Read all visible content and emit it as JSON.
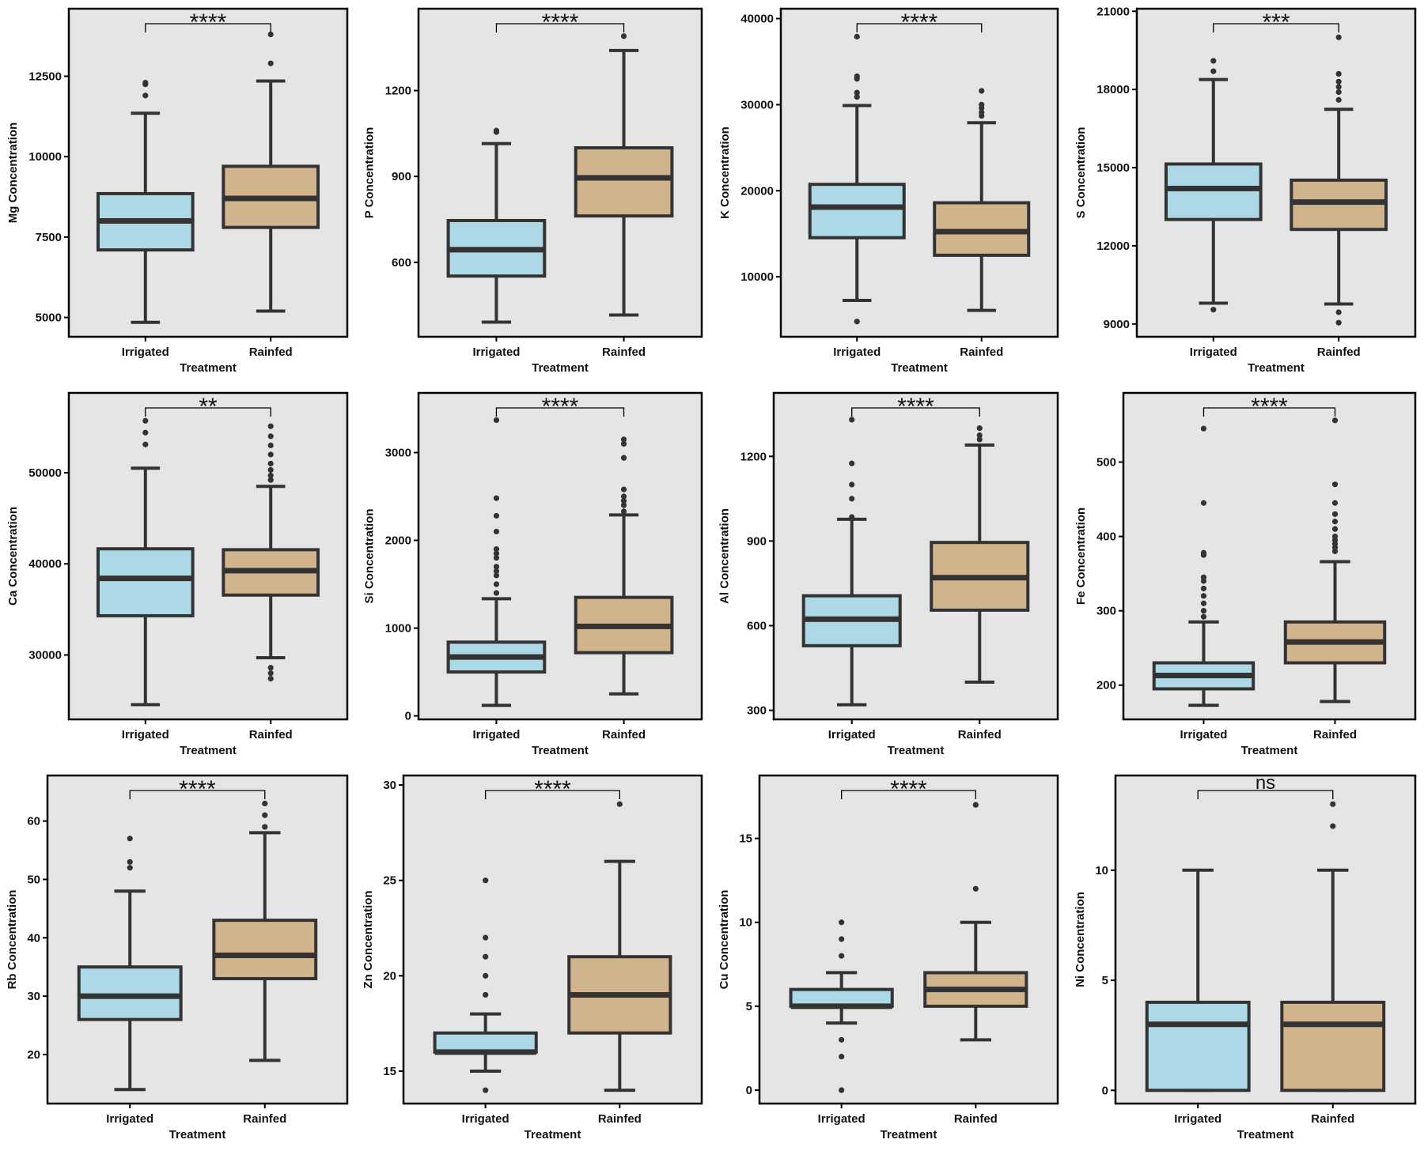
{
  "colors": {
    "irrigated": "#add8e6",
    "rainfed": "#d2b48c",
    "panel_bg": "#e5e5e5",
    "line": "#333333"
  },
  "chart_data": [
    {
      "type": "box",
      "ylabel": "Mg Concentration",
      "xlabel": "Treatment",
      "categories": [
        "Irrigated",
        "Rainfed"
      ],
      "ylim": [
        4400,
        14600
      ],
      "yticks": [
        "5000",
        "7500",
        "10000",
        "12500"
      ],
      "significance": "****",
      "series": [
        {
          "name": "Irrigated",
          "whisker_low": 4850,
          "q1": 7100,
          "median": 8000,
          "q3": 8850,
          "whisker_high": 11350,
          "outliers": [
            11900,
            12250,
            12300
          ]
        },
        {
          "name": "Rainfed",
          "whisker_low": 5200,
          "q1": 7800,
          "median": 8700,
          "q3": 9700,
          "whisker_high": 12350,
          "outliers": [
            12900,
            13800
          ]
        }
      ]
    },
    {
      "type": "box",
      "ylabel": "P Concentration",
      "xlabel": "Treatment",
      "categories": [
        "Irrigated",
        "Rainfed"
      ],
      "ylim": [
        340,
        1486
      ],
      "yticks": [
        "600",
        "900",
        "1200"
      ],
      "significance": "****",
      "series": [
        {
          "name": "Irrigated",
          "whisker_low": 391,
          "q1": 552,
          "median": 644,
          "q3": 746,
          "whisker_high": 1015,
          "outliers": [
            1055,
            1060
          ]
        },
        {
          "name": "Rainfed",
          "whisker_low": 416,
          "q1": 762,
          "median": 895,
          "q3": 1000,
          "whisker_high": 1340,
          "outliers": [
            1390
          ]
        }
      ]
    },
    {
      "type": "box",
      "ylabel": "K Concentration",
      "xlabel": "Treatment",
      "categories": [
        "Irrigated",
        "Rainfed"
      ],
      "ylim": [
        3030,
        41150
      ],
      "yticks": [
        "10000",
        "20000",
        "30000",
        "40000"
      ],
      "significance": "****",
      "series": [
        {
          "name": "Irrigated",
          "whisker_low": 7250,
          "q1": 14540,
          "median": 18100,
          "q3": 20740,
          "whisker_high": 29900,
          "outliers": [
            4800,
            30900,
            31400,
            33000,
            33300,
            37900
          ]
        },
        {
          "name": "Rainfed",
          "whisker_low": 6100,
          "q1": 12500,
          "median": 15250,
          "q3": 18600,
          "whisker_high": 27900,
          "outliers": [
            28700,
            29100,
            29600,
            30000,
            31600
          ]
        }
      ]
    },
    {
      "type": "box",
      "ylabel": "S Concentration",
      "xlabel": "Treatment",
      "categories": [
        "Irrigated",
        "Rainfed"
      ],
      "ylim": [
        8510,
        21100
      ],
      "yticks": [
        "9000",
        "12000",
        "15000",
        "18000",
        "21000"
      ],
      "significance": "***",
      "series": [
        {
          "name": "Irrigated",
          "whisker_low": 9800,
          "q1": 13010,
          "median": 14200,
          "q3": 15140,
          "whisker_high": 18380,
          "outliers": [
            9550,
            18700,
            19100
          ]
        },
        {
          "name": "Rainfed",
          "whisker_low": 9770,
          "q1": 12630,
          "median": 13680,
          "q3": 14520,
          "whisker_high": 17240,
          "outliers": [
            9450,
            9050,
            17600,
            17900,
            18100,
            18300,
            18600,
            20000
          ]
        }
      ]
    },
    {
      "type": "box",
      "ylabel": "Ca Concentration",
      "xlabel": "Treatment",
      "categories": [
        "Irrigated",
        "Rainfed"
      ],
      "ylim": [
        22930,
        58760
      ],
      "yticks": [
        "30000",
        "40000",
        "50000"
      ],
      "significance": "**",
      "series": [
        {
          "name": "Irrigated",
          "whisker_low": 24550,
          "q1": 34300,
          "median": 38400,
          "q3": 41650,
          "whisker_high": 50500,
          "outliers": [
            53100,
            54400,
            55700
          ]
        },
        {
          "name": "Rainfed",
          "whisker_low": 29700,
          "q1": 36570,
          "median": 39250,
          "q3": 41550,
          "whisker_high": 48500,
          "outliers": [
            27400,
            28000,
            28600,
            49200,
            49700,
            50300,
            51000,
            52000,
            53000,
            54000,
            55100
          ]
        }
      ]
    },
    {
      "type": "box",
      "ylabel": "Si Concentration",
      "xlabel": "Treatment",
      "categories": [
        "Irrigated",
        "Rainfed"
      ],
      "ylim": [
        -40,
        3680
      ],
      "yticks": [
        "0",
        "1000",
        "2000",
        "3000"
      ],
      "significance": "****",
      "series": [
        {
          "name": "Irrigated",
          "whisker_low": 120,
          "q1": 500,
          "median": 670,
          "q3": 840,
          "whisker_high": 1335,
          "outliers": [
            1400,
            1500,
            1600,
            1650,
            1700,
            1800,
            1850,
            1900,
            2100,
            2280,
            2480,
            3370
          ]
        },
        {
          "name": "Rainfed",
          "whisker_low": 250,
          "q1": 720,
          "median": 1020,
          "q3": 1350,
          "whisker_high": 2290,
          "outliers": [
            2330,
            2400,
            2450,
            2500,
            2580,
            2940,
            3100,
            3150
          ]
        }
      ]
    },
    {
      "type": "box",
      "ylabel": "Al Concentration",
      "xlabel": "Treatment",
      "categories": [
        "Irrigated",
        "Rainfed"
      ],
      "ylim": [
        268,
        1425
      ],
      "yticks": [
        "300",
        "600",
        "900",
        "1200"
      ],
      "significance": "****",
      "series": [
        {
          "name": "Irrigated",
          "whisker_low": 320,
          "q1": 529,
          "median": 623,
          "q3": 706,
          "whisker_high": 977,
          "outliers": [
            985,
            1050,
            1100,
            1175,
            1330
          ]
        },
        {
          "name": "Rainfed",
          "whisker_low": 400,
          "q1": 655,
          "median": 770,
          "q3": 895,
          "whisker_high": 1240,
          "outliers": [
            1260,
            1275,
            1300
          ]
        }
      ]
    },
    {
      "type": "box",
      "ylabel": "Fe Concentration",
      "xlabel": "Treatment",
      "categories": [
        "Irrigated",
        "Rainfed"
      ],
      "ylim": [
        154,
        593
      ],
      "yticks": [
        "200",
        "300",
        "400",
        "500"
      ],
      "significance": "****",
      "series": [
        {
          "name": "Irrigated",
          "whisker_low": 173,
          "q1": 195,
          "median": 213,
          "q3": 230,
          "whisker_high": 285,
          "outliers": [
            292,
            300,
            310,
            320,
            330,
            340,
            345,
            375,
            378,
            445,
            545
          ]
        },
        {
          "name": "Rainfed",
          "whisker_low": 178,
          "q1": 230,
          "median": 258,
          "q3": 285,
          "whisker_high": 366,
          "outliers": [
            380,
            385,
            390,
            395,
            400,
            410,
            420,
            430,
            445,
            470,
            556
          ]
        }
      ]
    },
    {
      "type": "box",
      "ylabel": "Rb Concentration",
      "xlabel": "Treatment",
      "categories": [
        "Irrigated",
        "Rainfed"
      ],
      "ylim": [
        11.6,
        67.8
      ],
      "yticks": [
        "20",
        "30",
        "40",
        "50",
        "60"
      ],
      "significance": "****",
      "series": [
        {
          "name": "Irrigated",
          "whisker_low": 14,
          "q1": 26,
          "median": 30,
          "q3": 35,
          "whisker_high": 48,
          "outliers": [
            52,
            53,
            57
          ]
        },
        {
          "name": "Rainfed",
          "whisker_low": 19,
          "q1": 33,
          "median": 37,
          "q3": 43,
          "whisker_high": 58,
          "outliers": [
            59,
            61,
            63
          ]
        }
      ]
    },
    {
      "type": "box",
      "ylabel": "Zn Concentration",
      "xlabel": "Treatment",
      "categories": [
        "Irrigated",
        "Rainfed"
      ],
      "ylim": [
        13.3,
        30.5
      ],
      "yticks": [
        "15",
        "20",
        "25",
        "30"
      ],
      "significance": "****",
      "series": [
        {
          "name": "Irrigated",
          "whisker_low": 15,
          "q1": 16,
          "median": 16,
          "q3": 17,
          "whisker_high": 18,
          "outliers": [
            14,
            19,
            20,
            21,
            22,
            25
          ]
        },
        {
          "name": "Rainfed",
          "whisker_low": 14,
          "q1": 17,
          "median": 19,
          "q3": 21,
          "whisker_high": 26,
          "outliers": [
            29
          ]
        }
      ]
    },
    {
      "type": "box",
      "ylabel": "Cu Concentration",
      "xlabel": "Treatment",
      "categories": [
        "Irrigated",
        "Rainfed"
      ],
      "ylim": [
        -0.8,
        18.75
      ],
      "yticks": [
        "0",
        "5",
        "10",
        "15"
      ],
      "significance": "****",
      "series": [
        {
          "name": "Irrigated",
          "whisker_low": 4,
          "q1": 5,
          "median": 5,
          "q3": 6,
          "whisker_high": 7,
          "outliers": [
            0,
            2,
            3,
            8,
            9,
            10
          ]
        },
        {
          "name": "Rainfed",
          "whisker_low": 3,
          "q1": 5,
          "median": 6,
          "q3": 7,
          "whisker_high": 10,
          "outliers": [
            12,
            17
          ]
        }
      ]
    },
    {
      "type": "box",
      "ylabel": "Ni Concentration",
      "xlabel": "Treatment",
      "categories": [
        "Irrigated",
        "Rainfed"
      ],
      "ylim": [
        -0.6,
        14.3
      ],
      "yticks": [
        "0",
        "5",
        "10"
      ],
      "significance": "ns",
      "series": [
        {
          "name": "Irrigated",
          "whisker_low": 0,
          "q1": 0,
          "median": 3,
          "q3": 4,
          "whisker_high": 10,
          "outliers": []
        },
        {
          "name": "Rainfed",
          "whisker_low": 0,
          "q1": 0,
          "median": 3,
          "q3": 4,
          "whisker_high": 10,
          "outliers": [
            12,
            13
          ]
        }
      ]
    }
  ]
}
